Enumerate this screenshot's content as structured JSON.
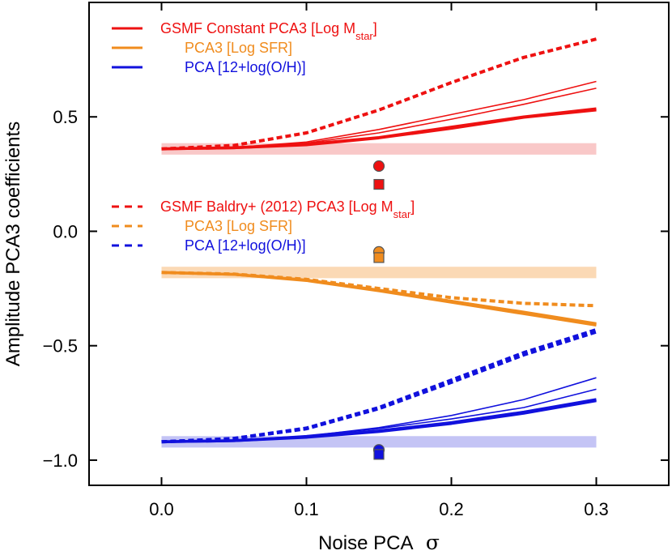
{
  "chart_data": {
    "type": "line",
    "xlabel": "Noise PCA",
    "xlabel_symbol": "σ",
    "ylabel": "Amplitude PCA3 coefficients",
    "xlim": [
      -0.05,
      0.35
    ],
    "ylim": [
      -1.11,
      1.0
    ],
    "xticks": [
      0.0,
      0.1,
      0.2,
      0.3
    ],
    "xtick_labels": [
      "0.0",
      "0.1",
      "0.2",
      "0.3"
    ],
    "yticks": [
      -1.0,
      -0.5,
      0.0,
      0.5
    ],
    "ytick_labels": [
      "−1.0",
      "−0.5",
      "0.0",
      "0.5"
    ],
    "colors": {
      "mstar": "#ee1111",
      "sfr": "#f08c1e",
      "oh": "#1111dd"
    },
    "legend_solid": [
      {
        "text": "GSMF Constant PCA3 [Log M",
        "sub": "star",
        "close": "]",
        "series": "mstar"
      },
      {
        "text": "PCA3 [Log SFR]",
        "sub": "",
        "close": "",
        "series": "sfr"
      },
      {
        "text": "PCA [12+log(O/H)]",
        "sub": "",
        "close": "",
        "series": "oh"
      }
    ],
    "legend_dashed": [
      {
        "text": "GSMF Baldry+ (2012) PCA3 [Log M",
        "sub": "star",
        "close": "]",
        "series": "mstar"
      },
      {
        "text": "PCA3 [Log SFR]",
        "sub": "",
        "close": "",
        "series": "sfr"
      },
      {
        "text": "PCA [12+log(O/H)]",
        "sub": "",
        "close": "",
        "series": "oh"
      }
    ],
    "bands": [
      {
        "series": "mstar",
        "y": [
          0.335,
          0.385
        ]
      },
      {
        "series": "sfr",
        "y": [
          -0.205,
          -0.155
        ]
      },
      {
        "series": "oh",
        "y": [
          -0.945,
          -0.895
        ]
      }
    ],
    "markers": [
      {
        "series": "mstar",
        "shape": "circle",
        "x": 0.15,
        "y": 0.285
      },
      {
        "series": "mstar",
        "shape": "square",
        "x": 0.15,
        "y": 0.205
      },
      {
        "series": "sfr",
        "shape": "circle",
        "x": 0.15,
        "y": -0.09
      },
      {
        "series": "sfr",
        "shape": "square",
        "x": 0.15,
        "y": -0.115
      },
      {
        "series": "oh",
        "shape": "circle",
        "x": 0.15,
        "y": -0.955
      },
      {
        "series": "oh",
        "shape": "square",
        "x": 0.15,
        "y": -0.975
      }
    ],
    "x": [
      0.0,
      0.05,
      0.1,
      0.15,
      0.2,
      0.25,
      0.3
    ],
    "series": [
      {
        "name": "mstar-const-1",
        "group": "mstar",
        "style": "solid",
        "width": "thick",
        "values": [
          0.36,
          0.365,
          0.38,
          0.41,
          0.455,
          0.5,
          0.535
        ]
      },
      {
        "name": "mstar-const-2",
        "group": "mstar",
        "style": "solid",
        "width": "thick",
        "values": [
          0.36,
          0.365,
          0.378,
          0.408,
          0.45,
          0.498,
          0.53
        ]
      },
      {
        "name": "mstar-const-3",
        "group": "mstar",
        "style": "solid",
        "width": "thin",
        "values": [
          0.36,
          0.366,
          0.39,
          0.445,
          0.51,
          0.575,
          0.655
        ]
      },
      {
        "name": "mstar-const-4",
        "group": "mstar",
        "style": "solid",
        "width": "thin",
        "values": [
          0.36,
          0.365,
          0.385,
          0.43,
          0.49,
          0.555,
          0.625
        ]
      },
      {
        "name": "mstar-baldry",
        "group": "mstar",
        "style": "dashed",
        "width": "thick",
        "values": [
          0.36,
          0.375,
          0.43,
          0.53,
          0.65,
          0.76,
          0.84
        ]
      },
      {
        "name": "sfr-const-1",
        "group": "sfr",
        "style": "solid",
        "width": "thick",
        "values": [
          -0.18,
          -0.188,
          -0.215,
          -0.26,
          -0.31,
          -0.36,
          -0.41
        ]
      },
      {
        "name": "sfr-const-2",
        "group": "sfr",
        "style": "solid",
        "width": "thick",
        "values": [
          -0.18,
          -0.188,
          -0.213,
          -0.257,
          -0.306,
          -0.355,
          -0.405
        ]
      },
      {
        "name": "sfr-const-3",
        "group": "sfr",
        "style": "solid",
        "width": "thin",
        "values": [
          -0.18,
          -0.187,
          -0.212,
          -0.255,
          -0.302,
          -0.35,
          -0.4
        ]
      },
      {
        "name": "sfr-baldry",
        "group": "sfr",
        "style": "dashed",
        "width": "thick",
        "values": [
          -0.18,
          -0.187,
          -0.21,
          -0.25,
          -0.29,
          -0.315,
          -0.325
        ]
      },
      {
        "name": "oh-const-1",
        "group": "oh",
        "style": "solid",
        "width": "thick",
        "values": [
          -0.92,
          -0.915,
          -0.9,
          -0.875,
          -0.84,
          -0.795,
          -0.74
        ]
      },
      {
        "name": "oh-const-2",
        "group": "oh",
        "style": "solid",
        "width": "thick",
        "values": [
          -0.92,
          -0.915,
          -0.898,
          -0.872,
          -0.836,
          -0.79,
          -0.735
        ]
      },
      {
        "name": "oh-const-3",
        "group": "oh",
        "style": "solid",
        "width": "thin",
        "values": [
          -0.92,
          -0.914,
          -0.895,
          -0.858,
          -0.805,
          -0.735,
          -0.64
        ]
      },
      {
        "name": "oh-const-4",
        "group": "oh",
        "style": "solid",
        "width": "thin",
        "values": [
          -0.92,
          -0.914,
          -0.893,
          -0.862,
          -0.82,
          -0.77,
          -0.69
        ]
      },
      {
        "name": "oh-baldry-1",
        "group": "oh",
        "style": "dashed",
        "width": "thick",
        "values": [
          -0.92,
          -0.905,
          -0.86,
          -0.77,
          -0.65,
          -0.53,
          -0.43
        ]
      },
      {
        "name": "oh-baldry-2",
        "group": "oh",
        "style": "dashed",
        "width": "thick",
        "values": [
          -0.92,
          -0.906,
          -0.863,
          -0.775,
          -0.66,
          -0.54,
          -0.44
        ]
      }
    ]
  }
}
